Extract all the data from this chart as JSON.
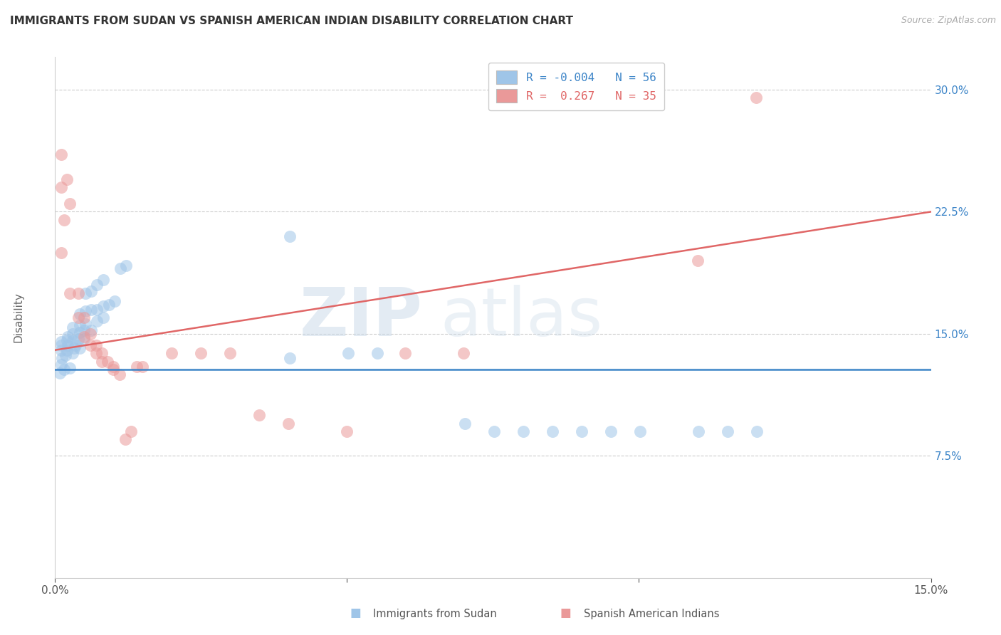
{
  "title": "IMMIGRANTS FROM SUDAN VS SPANISH AMERICAN INDIAN DISABILITY CORRELATION CHART",
  "source": "Source: ZipAtlas.com",
  "ylabel_label": "Disability",
  "xlim": [
    0.0,
    0.15
  ],
  "ylim": [
    0.0,
    0.32
  ],
  "ytick_vals": [
    0.075,
    0.15,
    0.225,
    0.3
  ],
  "ytick_labels": [
    "7.5%",
    "15.0%",
    "22.5%",
    "30.0%"
  ],
  "xtick_vals": [
    0.0,
    0.05,
    0.1,
    0.15
  ],
  "xtick_labels": [
    "0.0%",
    "",
    "",
    "15.0%"
  ],
  "color_blue": "#9fc5e8",
  "color_pink": "#ea9999",
  "color_line_blue": "#3d85c8",
  "color_line_pink": "#e06666",
  "watermark_zip": "ZIP",
  "watermark_atlas": "atlas",
  "bottom_legend1": "Immigrants from Sudan",
  "bottom_legend2": "Spanish American Indians",
  "legend_entries": [
    {
      "r": "R = -0.004",
      "n": "N = 56"
    },
    {
      "r": "R =  0.267",
      "n": "N = 35"
    }
  ],
  "sudan_points": [
    [
      0.0008,
      0.126
    ],
    [
      0.0015,
      0.128
    ],
    [
      0.001,
      0.131
    ],
    [
      0.0025,
      0.129
    ],
    [
      0.0012,
      0.135
    ],
    [
      0.0018,
      0.137
    ],
    [
      0.003,
      0.138
    ],
    [
      0.001,
      0.14
    ],
    [
      0.002,
      0.14
    ],
    [
      0.0032,
      0.141
    ],
    [
      0.0042,
      0.141
    ],
    [
      0.001,
      0.143
    ],
    [
      0.0022,
      0.143
    ],
    [
      0.0035,
      0.143
    ],
    [
      0.001,
      0.145
    ],
    [
      0.002,
      0.146
    ],
    [
      0.003,
      0.146
    ],
    [
      0.004,
      0.147
    ],
    [
      0.005,
      0.147
    ],
    [
      0.0022,
      0.148
    ],
    [
      0.003,
      0.15
    ],
    [
      0.0042,
      0.151
    ],
    [
      0.005,
      0.152
    ],
    [
      0.0062,
      0.152
    ],
    [
      0.003,
      0.154
    ],
    [
      0.0042,
      0.155
    ],
    [
      0.0052,
      0.156
    ],
    [
      0.0072,
      0.158
    ],
    [
      0.0082,
      0.16
    ],
    [
      0.0042,
      0.162
    ],
    [
      0.0052,
      0.164
    ],
    [
      0.0062,
      0.165
    ],
    [
      0.0072,
      0.165
    ],
    [
      0.0082,
      0.167
    ],
    [
      0.0092,
      0.168
    ],
    [
      0.0102,
      0.17
    ],
    [
      0.0052,
      0.175
    ],
    [
      0.0062,
      0.176
    ],
    [
      0.0072,
      0.18
    ],
    [
      0.0082,
      0.183
    ],
    [
      0.0112,
      0.19
    ],
    [
      0.0122,
      0.192
    ],
    [
      0.0402,
      0.21
    ],
    [
      0.0402,
      0.135
    ],
    [
      0.0502,
      0.138
    ],
    [
      0.0552,
      0.138
    ],
    [
      0.0702,
      0.095
    ],
    [
      0.0752,
      0.09
    ],
    [
      0.0802,
      0.09
    ],
    [
      0.0852,
      0.09
    ],
    [
      0.0902,
      0.09
    ],
    [
      0.0952,
      0.09
    ],
    [
      0.1002,
      0.09
    ],
    [
      0.1102,
      0.09
    ],
    [
      0.1152,
      0.09
    ],
    [
      0.1202,
      0.09
    ]
  ],
  "spanish_points": [
    [
      0.001,
      0.2
    ],
    [
      0.001,
      0.24
    ],
    [
      0.001,
      0.26
    ],
    [
      0.0015,
      0.22
    ],
    [
      0.002,
      0.245
    ],
    [
      0.0025,
      0.23
    ],
    [
      0.0025,
      0.175
    ],
    [
      0.004,
      0.175
    ],
    [
      0.004,
      0.16
    ],
    [
      0.005,
      0.16
    ],
    [
      0.005,
      0.148
    ],
    [
      0.006,
      0.15
    ],
    [
      0.006,
      0.143
    ],
    [
      0.007,
      0.143
    ],
    [
      0.007,
      0.138
    ],
    [
      0.008,
      0.138
    ],
    [
      0.008,
      0.133
    ],
    [
      0.009,
      0.133
    ],
    [
      0.01,
      0.13
    ],
    [
      0.01,
      0.128
    ],
    [
      0.011,
      0.125
    ],
    [
      0.012,
      0.085
    ],
    [
      0.013,
      0.09
    ],
    [
      0.014,
      0.13
    ],
    [
      0.015,
      0.13
    ],
    [
      0.02,
      0.138
    ],
    [
      0.025,
      0.138
    ],
    [
      0.03,
      0.138
    ],
    [
      0.035,
      0.1
    ],
    [
      0.04,
      0.095
    ],
    [
      0.05,
      0.09
    ],
    [
      0.06,
      0.138
    ],
    [
      0.07,
      0.138
    ],
    [
      0.11,
      0.195
    ],
    [
      0.12,
      0.295
    ]
  ]
}
